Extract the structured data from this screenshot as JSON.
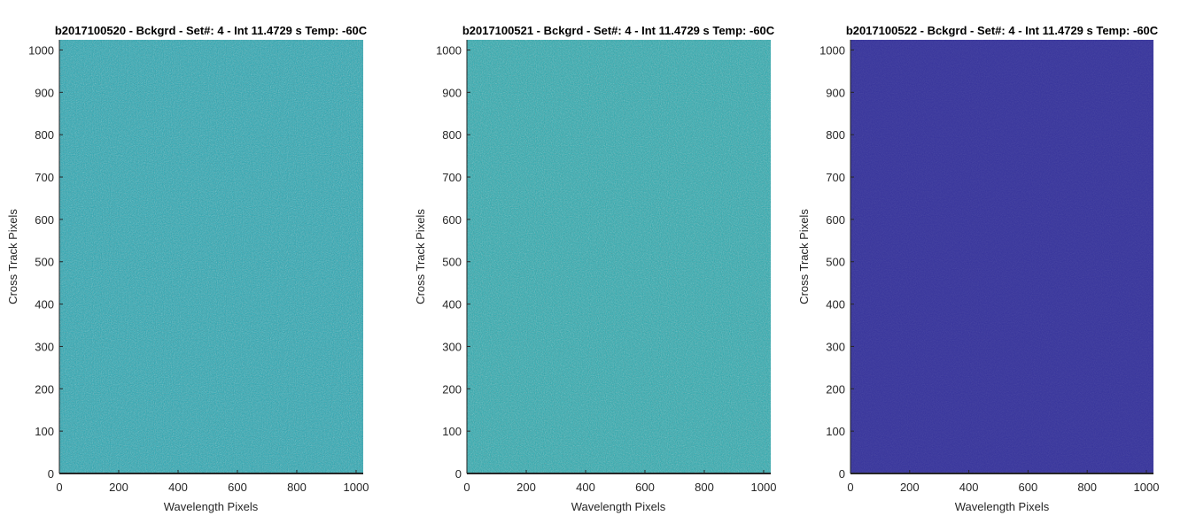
{
  "chart_data": [
    {
      "type": "heatmap",
      "title": "b2017100520 - Bckgrd - Set#: 4 - Int 11.4729 s Temp: -60C",
      "xlabel": "Wavelength Pixels",
      "ylabel": "Cross Track Pixels",
      "xlim": [
        0,
        1024
      ],
      "ylim": [
        0,
        1024
      ],
      "xticks": [
        "0",
        "200",
        "400",
        "600",
        "800",
        "1000"
      ],
      "yticks": [
        "0",
        "100",
        "200",
        "300",
        "400",
        "500",
        "600",
        "700",
        "800",
        "900",
        "1000"
      ],
      "fill_color": "#23a8b4",
      "noise_color": "#3fbe9f"
    },
    {
      "type": "heatmap",
      "title": "b2017100521 - Bckgrd - Set#: 4 - Int 11.4729 s Temp: -60C",
      "xlabel": "Wavelength Pixels",
      "ylabel": "Cross Track Pixels",
      "xlim": [
        0,
        1024
      ],
      "ylim": [
        0,
        1024
      ],
      "xticks": [
        "0",
        "200",
        "400",
        "600",
        "800",
        "1000"
      ],
      "yticks": [
        "0",
        "100",
        "200",
        "300",
        "400",
        "500",
        "600",
        "700",
        "800",
        "900",
        "1000"
      ],
      "fill_color": "#25abb0",
      "noise_color": "#4cc190"
    },
    {
      "type": "heatmap",
      "title": "b2017100522 - Bckgrd - Set#: 4 - Int 11.4729 s Temp: -60C",
      "xlabel": "Wavelength Pixels",
      "ylabel": "Cross Track Pixels",
      "xlim": [
        0,
        1024
      ],
      "ylim": [
        0,
        1024
      ],
      "xticks": [
        "0",
        "200",
        "400",
        "600",
        "800",
        "1000"
      ],
      "yticks": [
        "0",
        "100",
        "200",
        "300",
        "400",
        "500",
        "600",
        "700",
        "800",
        "900",
        "1000"
      ],
      "fill_color": "#35329c",
      "noise_color": "#3b3aa8"
    }
  ]
}
